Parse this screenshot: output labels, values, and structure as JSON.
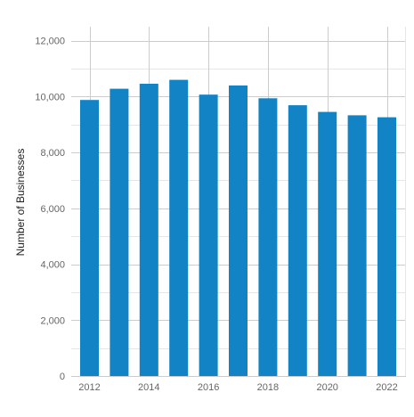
{
  "chart_data": {
    "type": "bar",
    "title": "",
    "xlabel": "",
    "ylabel": "Number of Businesses",
    "categories": [
      "2012",
      "2013",
      "2014",
      "2015",
      "2016",
      "2017",
      "2018",
      "2019",
      "2020",
      "2021",
      "2022"
    ],
    "values": [
      9880,
      10280,
      10460,
      10600,
      10070,
      10400,
      9940,
      9690,
      9450,
      9330,
      9260
    ],
    "x_tick_labels": [
      "2012",
      "2014",
      "2016",
      "2018",
      "2020",
      "2022"
    ],
    "ylim": [
      0,
      12500
    ],
    "y_ticks": [
      0,
      2000,
      4000,
      6000,
      8000,
      10000,
      12000
    ],
    "y_tick_labels": [
      "0",
      "2,000",
      "4,000",
      "6,000",
      "8,000",
      "10,000",
      "12,000"
    ],
    "grid": true,
    "legend": "none",
    "colors": {
      "bar": "#1283c4",
      "grid_major": "#cccccc",
      "grid_minor": "#e6e6e6",
      "tick_text": "#666666"
    }
  }
}
